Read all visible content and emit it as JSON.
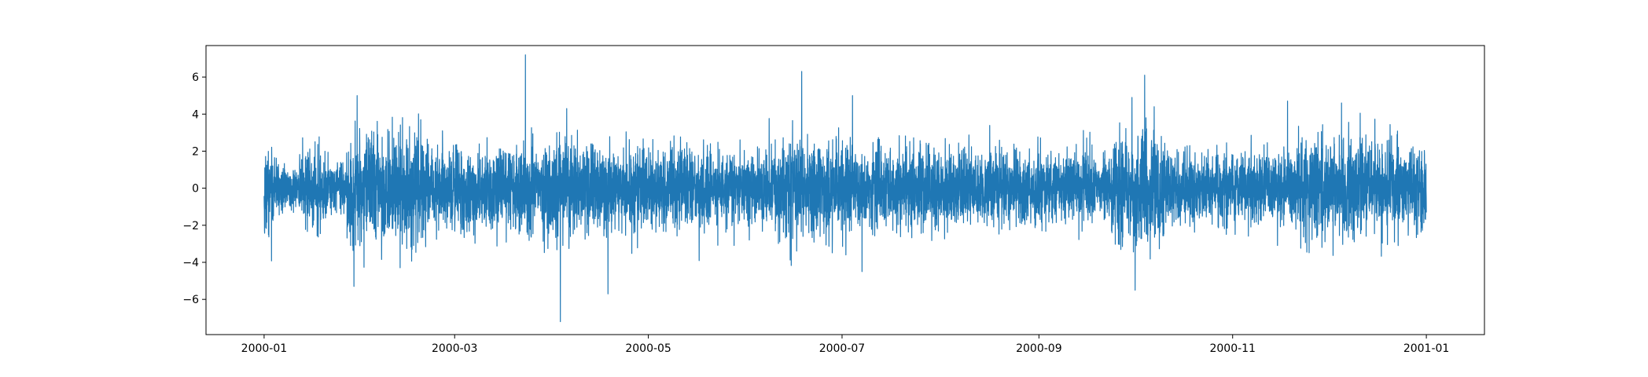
{
  "chart_data": {
    "type": "line",
    "title": "",
    "xlabel": "",
    "ylabel": "",
    "x_range": [
      "2000-01-01",
      "2001-01-01"
    ],
    "ylim": [
      -7.9,
      7.7
    ],
    "grid": false,
    "x_ticks": [
      {
        "date": "2000-01-01",
        "label": "2000-01"
      },
      {
        "date": "2000-03-01",
        "label": "2000-03"
      },
      {
        "date": "2000-05-01",
        "label": "2000-05"
      },
      {
        "date": "2000-07-01",
        "label": "2000-07"
      },
      {
        "date": "2000-09-01",
        "label": "2000-09"
      },
      {
        "date": "2000-11-01",
        "label": "2000-11"
      },
      {
        "date": "2001-01-01",
        "label": "2001-01"
      }
    ],
    "y_ticks": [
      {
        "value": 6,
        "label": "6"
      },
      {
        "value": 4,
        "label": "4"
      },
      {
        "value": 2,
        "label": "2"
      },
      {
        "value": 0,
        "label": "0"
      },
      {
        "value": -2,
        "label": "−2"
      },
      {
        "value": -4,
        "label": "−4"
      },
      {
        "value": -6,
        "label": "−6"
      }
    ],
    "series": [
      {
        "color": "#1f77b4",
        "sampling": "hourly",
        "start": "2000-01-01",
        "end": "2001-01-01",
        "base_sigma": 1.0,
        "volatility_regimes": [
          {
            "start": "2000-01-01",
            "end": "2000-01-04",
            "sigma": 1.2
          },
          {
            "start": "2000-01-04",
            "end": "2000-01-12",
            "sigma": 0.65
          },
          {
            "start": "2000-01-12",
            "end": "2000-01-20",
            "sigma": 1.0
          },
          {
            "start": "2000-01-20",
            "end": "2000-01-27",
            "sigma": 0.75
          },
          {
            "start": "2000-01-27",
            "end": "2000-02-22",
            "sigma": 1.45
          },
          {
            "start": "2000-02-22",
            "end": "2000-03-28",
            "sigma": 1.05
          },
          {
            "start": "2000-03-28",
            "end": "2000-04-10",
            "sigma": 1.2
          },
          {
            "start": "2000-04-10",
            "end": "2000-05-01",
            "sigma": 1.1
          },
          {
            "start": "2000-05-01",
            "end": "2000-06-10",
            "sigma": 1.0
          },
          {
            "start": "2000-06-10",
            "end": "2000-07-05",
            "sigma": 1.25
          },
          {
            "start": "2000-07-05",
            "end": "2000-08-10",
            "sigma": 1.05
          },
          {
            "start": "2000-08-10",
            "end": "2000-09-25",
            "sigma": 0.95
          },
          {
            "start": "2000-09-25",
            "end": "2000-10-12",
            "sigma": 1.4
          },
          {
            "start": "2000-10-12",
            "end": "2000-11-20",
            "sigma": 0.95
          },
          {
            "start": "2000-11-20",
            "end": "2000-12-12",
            "sigma": 1.3
          },
          {
            "start": "2000-12-12",
            "end": "2001-01-01",
            "sigma": 1.15
          }
        ],
        "spikes": [
          {
            "date": "2000-01-30",
            "value": 5.0
          },
          {
            "date": "2000-01-29",
            "value": -5.3
          },
          {
            "date": "2000-03-23",
            "value": 7.2
          },
          {
            "date": "2000-04-03",
            "value": -7.2
          },
          {
            "date": "2000-04-18",
            "value": -5.7
          },
          {
            "date": "2000-04-05",
            "value": 4.3
          },
          {
            "date": "2000-06-18",
            "value": 6.3
          },
          {
            "date": "2000-07-07",
            "value": -4.5
          },
          {
            "date": "2000-07-04",
            "value": 5.0
          },
          {
            "date": "2000-09-30",
            "value": 4.9
          },
          {
            "date": "2000-10-01",
            "value": -5.5
          },
          {
            "date": "2000-10-04",
            "value": 6.1
          },
          {
            "date": "2000-10-07",
            "value": 4.4
          },
          {
            "date": "2000-11-18",
            "value": 4.7
          },
          {
            "date": "2000-12-05",
            "value": -5.2
          },
          {
            "date": "2000-12-05",
            "value": 4.6
          }
        ]
      }
    ]
  }
}
